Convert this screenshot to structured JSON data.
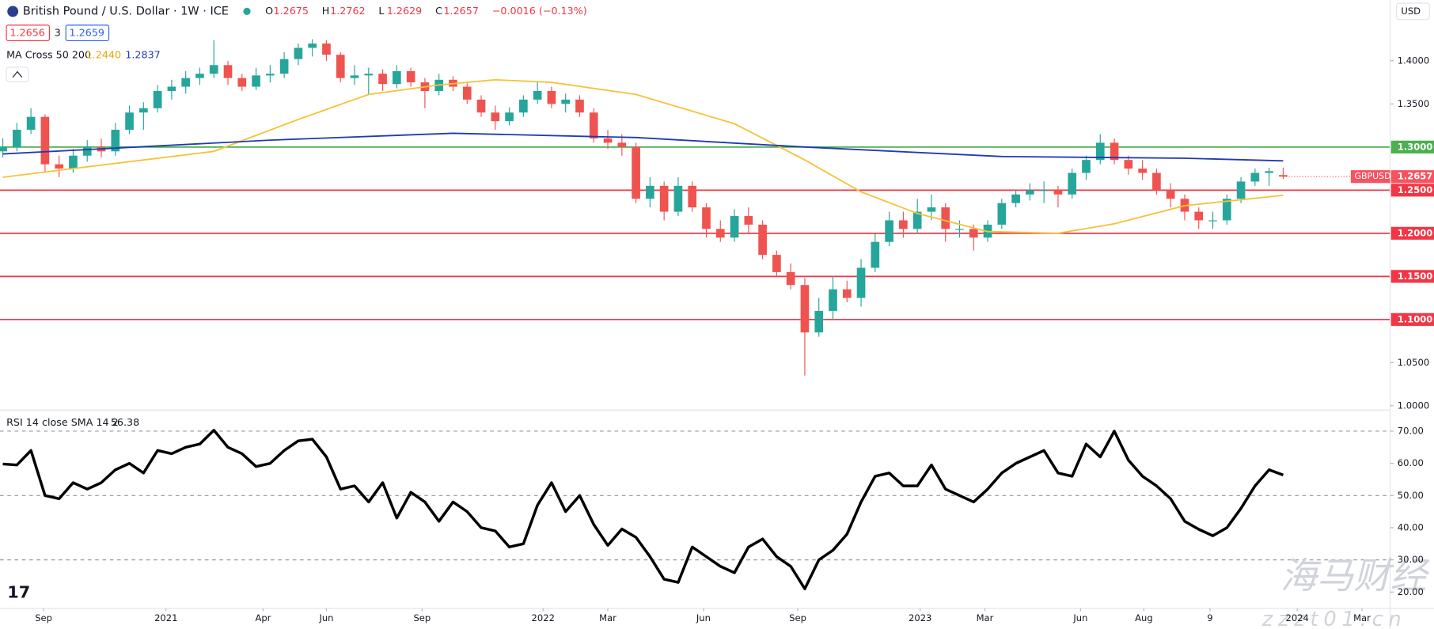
{
  "header": {
    "title": "British Pound / U.S. Dollar · 1W · ICE",
    "ohlc_labels": [
      "O",
      "H",
      "L",
      "C"
    ],
    "change": "−0.0016 (−0.13%)",
    "bid": "1.2656",
    "spread": "3",
    "ask": "1.2659",
    "ma_title": "MA Cross 50 200",
    "ma_fast": "1.2440",
    "ma_slow": "1.2837",
    "rsi_title": "RSI 14 close SMA 14 2",
    "rsi_value": "56.38",
    "currency": "USD",
    "symbol": "GBPUSD",
    "watermark": "海马财经",
    "watermark_url": "zzzt01.cn"
  },
  "chart_data": [
    {
      "type": "candlestick",
      "up_color": "#26a69a",
      "down_color": "#ef5350",
      "xlim": [
        -0.2,
        98.6
      ],
      "ylim": [
        0.995,
        1.47
      ],
      "xticks": [
        {
          "value": 2.9,
          "label": "Sep"
        },
        {
          "value": 11.6,
          "label": "2021"
        },
        {
          "value": 18.5,
          "label": "Apr"
        },
        {
          "value": 23,
          "label": "Jun"
        },
        {
          "value": 29.8,
          "label": "Sep"
        },
        {
          "value": 38.4,
          "label": "2022"
        },
        {
          "value": 43,
          "label": "Mar"
        },
        {
          "value": 49.8,
          "label": "Jun"
        },
        {
          "value": 56.5,
          "label": "Sep"
        },
        {
          "value": 65.2,
          "label": "2023"
        },
        {
          "value": 69.8,
          "label": "Mar"
        },
        {
          "value": 76.6,
          "label": "Jun"
        },
        {
          "value": 81.1,
          "label": "Aug"
        },
        {
          "value": 85.8,
          "label": "9"
        },
        {
          "value": 92,
          "label": "2024"
        },
        {
          "value": 96.6,
          "label": "Mar"
        }
      ],
      "yticks": [
        {
          "value": 1.4,
          "label": "1.4000"
        },
        {
          "value": 1.35,
          "label": "1.3500"
        },
        {
          "value": 1.05,
          "label": "1.0500"
        },
        {
          "value": 1.0,
          "label": "1.0000"
        }
      ],
      "levels": [
        {
          "value": 1.3,
          "label": "1.3000",
          "color": "#4caf50"
        },
        {
          "value": 1.25,
          "label": "1.2500",
          "color": "#f23645"
        },
        {
          "value": 1.2,
          "label": "1.2000",
          "color": "#f23645"
        },
        {
          "value": 1.15,
          "label": "1.1500",
          "color": "#f23645"
        },
        {
          "value": 1.1,
          "label": "1.1000",
          "color": "#f23645"
        }
      ],
      "ohlc": [
        [
          1.295,
          1.31,
          1.288,
          1.3
        ],
        [
          1.3,
          1.328,
          1.295,
          1.32
        ],
        [
          1.32,
          1.345,
          1.315,
          1.335
        ],
        [
          1.335,
          1.338,
          1.27,
          1.28
        ],
        [
          1.28,
          1.29,
          1.265,
          1.275
        ],
        [
          1.275,
          1.298,
          1.27,
          1.29
        ],
        [
          1.29,
          1.308,
          1.283,
          1.3
        ],
        [
          1.3,
          1.31,
          1.288,
          1.295
        ],
        [
          1.295,
          1.328,
          1.29,
          1.32
        ],
        [
          1.32,
          1.348,
          1.315,
          1.34
        ],
        [
          1.34,
          1.352,
          1.32,
          1.345
        ],
        [
          1.345,
          1.372,
          1.34,
          1.365
        ],
        [
          1.365,
          1.378,
          1.355,
          1.37
        ],
        [
          1.37,
          1.388,
          1.362,
          1.38
        ],
        [
          1.38,
          1.392,
          1.372,
          1.385
        ],
        [
          1.385,
          1.424,
          1.38,
          1.395
        ],
        [
          1.395,
          1.4,
          1.372,
          1.38
        ],
        [
          1.38,
          1.385,
          1.365,
          1.37
        ],
        [
          1.37,
          1.392,
          1.366,
          1.383
        ],
        [
          1.383,
          1.395,
          1.375,
          1.385
        ],
        [
          1.385,
          1.41,
          1.38,
          1.402
        ],
        [
          1.402,
          1.42,
          1.395,
          1.415
        ],
        [
          1.415,
          1.425,
          1.405,
          1.42
        ],
        [
          1.42,
          1.424,
          1.4,
          1.407
        ],
        [
          1.407,
          1.41,
          1.375,
          1.38
        ],
        [
          1.38,
          1.395,
          1.372,
          1.383
        ],
        [
          1.383,
          1.392,
          1.36,
          1.385
        ],
        [
          1.385,
          1.39,
          1.365,
          1.373
        ],
        [
          1.373,
          1.395,
          1.368,
          1.388
        ],
        [
          1.388,
          1.392,
          1.37,
          1.375
        ],
        [
          1.375,
          1.38,
          1.345,
          1.365
        ],
        [
          1.365,
          1.385,
          1.36,
          1.378
        ],
        [
          1.378,
          1.382,
          1.365,
          1.37
        ],
        [
          1.37,
          1.374,
          1.35,
          1.355
        ],
        [
          1.355,
          1.36,
          1.335,
          1.34
        ],
        [
          1.34,
          1.348,
          1.32,
          1.33
        ],
        [
          1.33,
          1.346,
          1.325,
          1.34
        ],
        [
          1.34,
          1.36,
          1.335,
          1.355
        ],
        [
          1.355,
          1.375,
          1.35,
          1.365
        ],
        [
          1.365,
          1.37,
          1.345,
          1.35
        ],
        [
          1.35,
          1.362,
          1.34,
          1.355
        ],
        [
          1.355,
          1.36,
          1.335,
          1.34
        ],
        [
          1.34,
          1.345,
          1.305,
          1.31
        ],
        [
          1.31,
          1.32,
          1.298,
          1.305
        ],
        [
          1.305,
          1.315,
          1.29,
          1.3
        ],
        [
          1.3,
          1.305,
          1.235,
          1.24
        ],
        [
          1.24,
          1.265,
          1.23,
          1.255
        ],
        [
          1.255,
          1.26,
          1.215,
          1.225
        ],
        [
          1.225,
          1.265,
          1.22,
          1.255
        ],
        [
          1.255,
          1.26,
          1.225,
          1.23
        ],
        [
          1.23,
          1.235,
          1.195,
          1.205
        ],
        [
          1.205,
          1.215,
          1.19,
          1.195
        ],
        [
          1.195,
          1.228,
          1.19,
          1.22
        ],
        [
          1.22,
          1.23,
          1.2,
          1.21
        ],
        [
          1.21,
          1.215,
          1.17,
          1.175
        ],
        [
          1.175,
          1.18,
          1.15,
          1.155
        ],
        [
          1.155,
          1.165,
          1.135,
          1.14
        ],
        [
          1.14,
          1.148,
          1.035,
          1.085
        ],
        [
          1.085,
          1.125,
          1.08,
          1.11
        ],
        [
          1.11,
          1.15,
          1.1,
          1.135
        ],
        [
          1.135,
          1.145,
          1.12,
          1.125
        ],
        [
          1.125,
          1.17,
          1.115,
          1.16
        ],
        [
          1.16,
          1.2,
          1.155,
          1.19
        ],
        [
          1.19,
          1.225,
          1.185,
          1.215
        ],
        [
          1.215,
          1.225,
          1.195,
          1.205
        ],
        [
          1.205,
          1.24,
          1.2,
          1.225
        ],
        [
          1.225,
          1.245,
          1.215,
          1.23
        ],
        [
          1.23,
          1.235,
          1.19,
          1.205
        ],
        [
          1.205,
          1.215,
          1.195,
          1.205
        ],
        [
          1.205,
          1.21,
          1.18,
          1.195
        ],
        [
          1.195,
          1.215,
          1.19,
          1.21
        ],
        [
          1.21,
          1.24,
          1.205,
          1.235
        ],
        [
          1.235,
          1.25,
          1.23,
          1.245
        ],
        [
          1.245,
          1.258,
          1.238,
          1.25
        ],
        [
          1.25,
          1.26,
          1.235,
          1.25
        ],
        [
          1.25,
          1.255,
          1.23,
          1.245
        ],
        [
          1.245,
          1.275,
          1.24,
          1.27
        ],
        [
          1.27,
          1.29,
          1.262,
          1.285
        ],
        [
          1.285,
          1.315,
          1.28,
          1.305
        ],
        [
          1.305,
          1.31,
          1.28,
          1.285
        ],
        [
          1.285,
          1.29,
          1.268,
          1.275
        ],
        [
          1.275,
          1.285,
          1.262,
          1.27
        ],
        [
          1.27,
          1.275,
          1.245,
          1.25
        ],
        [
          1.25,
          1.258,
          1.23,
          1.24
        ],
        [
          1.24,
          1.245,
          1.215,
          1.225
        ],
        [
          1.225,
          1.23,
          1.205,
          1.215
        ],
        [
          1.215,
          1.225,
          1.205,
          1.215
        ],
        [
          1.215,
          1.245,
          1.21,
          1.24
        ],
        [
          1.24,
          1.265,
          1.235,
          1.26
        ],
        [
          1.26,
          1.275,
          1.255,
          1.27
        ],
        [
          1.27,
          1.276,
          1.255,
          1.272
        ],
        [
          1.2675,
          1.2762,
          1.2629,
          1.2657
        ]
      ],
      "series": [
        {
          "name": "MA 50",
          "color": "#f7c23b",
          "x": [
            0,
            15,
            21,
            26,
            31,
            35,
            39,
            45,
            52,
            57,
            61,
            65,
            70,
            75,
            79,
            84,
            91
          ],
          "values": [
            1.265,
            1.295,
            1.332,
            1.361,
            1.372,
            1.378,
            1.375,
            1.361,
            1.327,
            1.285,
            1.248,
            1.223,
            1.202,
            1.2,
            1.211,
            1.232,
            1.244
          ]
        },
        {
          "name": "MA 200",
          "color": "#1e3bb3",
          "x": [
            0,
            19,
            32,
            45,
            57,
            71,
            84,
            91
          ],
          "values": [
            1.292,
            1.308,
            1.316,
            1.311,
            1.3,
            1.289,
            1.287,
            1.284
          ]
        }
      ]
    },
    {
      "type": "line",
      "color": "#000000",
      "xlim": [
        -0.2,
        98.6
      ],
      "ylim": [
        14.9,
        76
      ],
      "yticks": [
        {
          "value": 70,
          "label": "70.00"
        },
        {
          "value": 60,
          "label": "60.00"
        },
        {
          "value": 50,
          "label": "50.00"
        },
        {
          "value": 40,
          "label": "40.00"
        },
        {
          "value": 30,
          "label": "30.00"
        },
        {
          "value": 20,
          "label": "20.00"
        }
      ],
      "guides": [
        70,
        50,
        30
      ],
      "values": [
        59.8,
        59.5,
        64,
        50,
        49,
        54,
        52,
        54,
        58,
        60,
        57,
        64,
        63,
        65,
        66,
        70.3,
        65,
        63,
        59,
        60,
        64,
        67,
        67.5,
        62,
        52,
        53,
        48,
        54,
        43,
        51,
        48,
        42,
        48,
        45,
        40,
        39,
        34,
        35,
        47,
        54,
        45,
        50,
        41,
        34.5,
        39.6,
        37,
        31,
        24,
        23,
        34,
        31,
        28,
        26,
        34,
        36.5,
        31,
        28,
        21,
        30,
        33,
        38,
        48,
        56,
        57,
        53,
        53,
        59.5,
        52,
        50,
        48,
        52,
        57,
        60,
        62,
        64,
        57,
        56,
        66,
        62,
        70,
        61,
        56,
        53,
        49,
        42,
        39.5,
        37.5,
        40,
        46,
        53,
        58,
        56.38
      ]
    }
  ]
}
